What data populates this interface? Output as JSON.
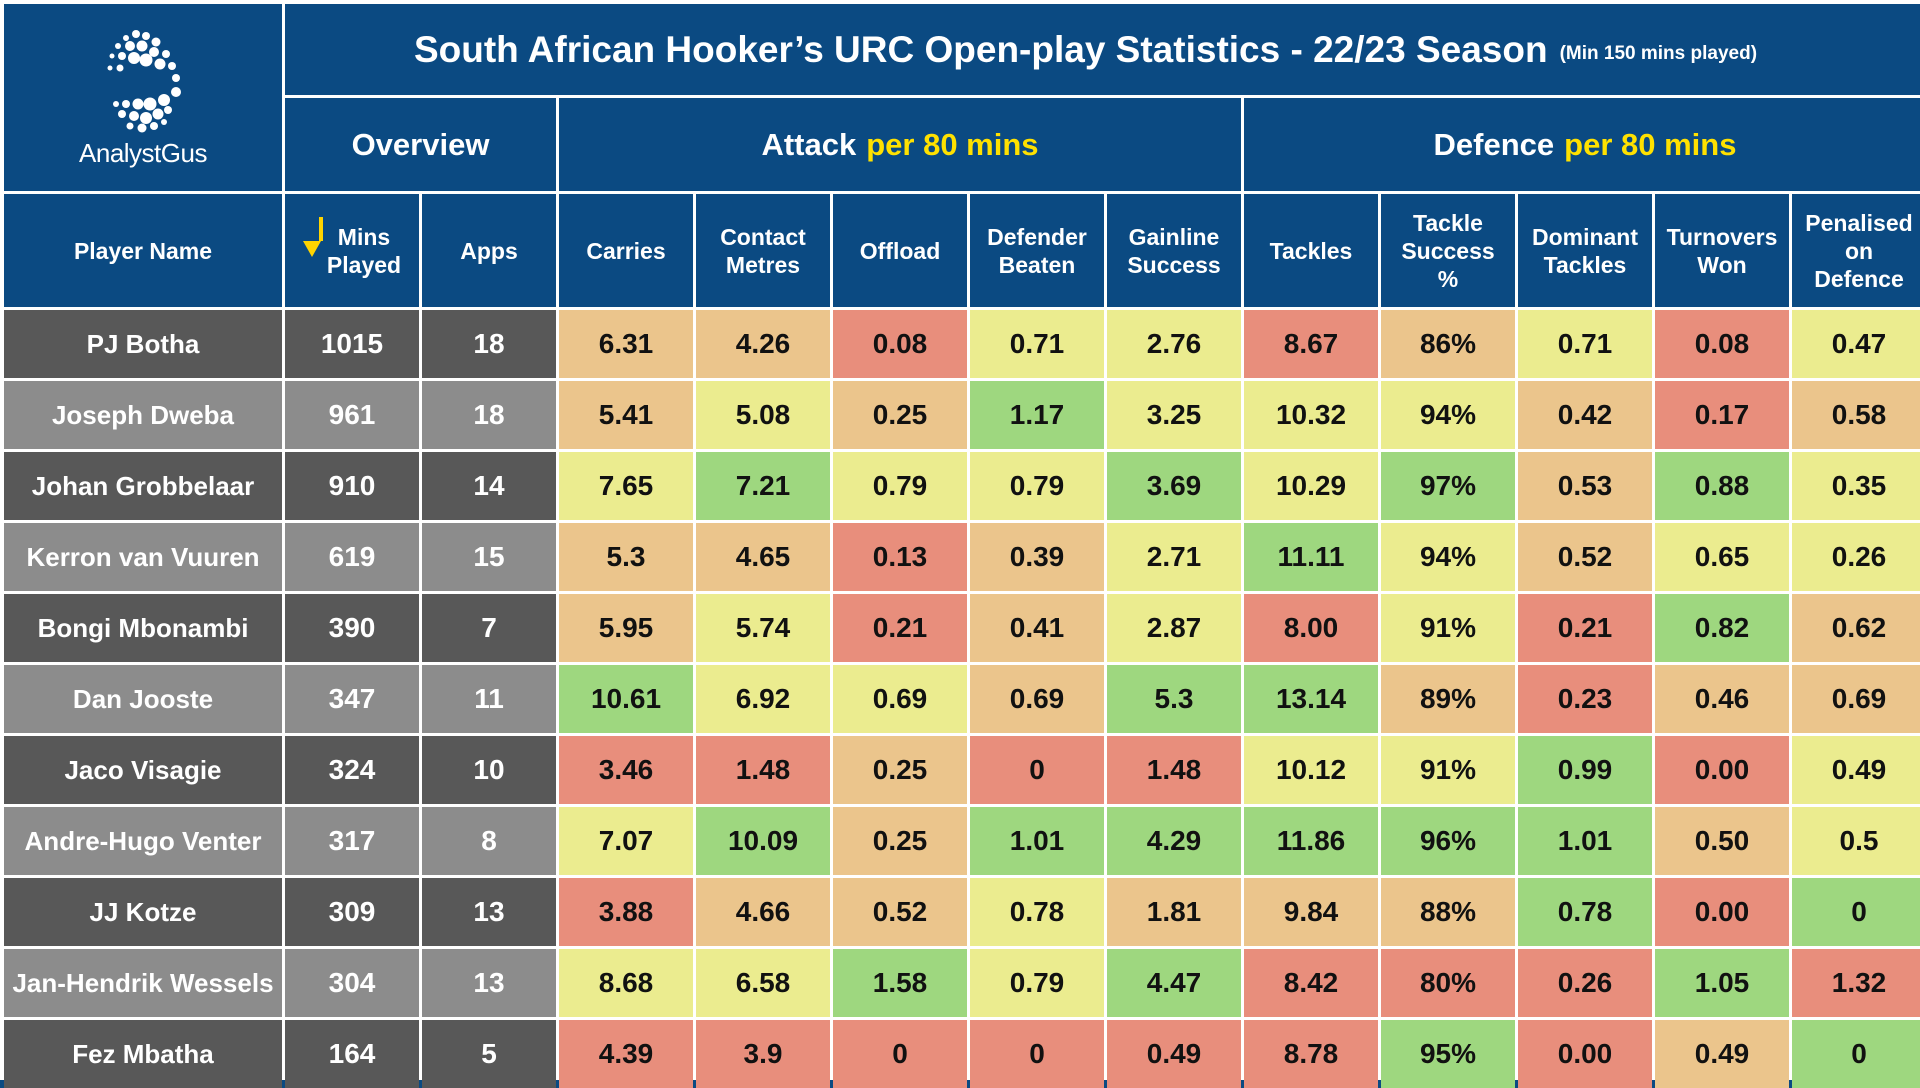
{
  "header": {
    "title": "South African Hooker’s URC Open-play Statistics - 22/23 Season",
    "subtitle": "(Min 150 mins played)",
    "logo_text": "AnalystGus"
  },
  "groups": {
    "overview": "Overview",
    "attack": "Attack",
    "attack_highlight": "per 80 mins",
    "defence": "Defence",
    "defence_highlight": "per 80 mins"
  },
  "colors": {
    "header_blue": "#0b4a82",
    "highlight_yellow": "#ffe100",
    "red": "#e88e7c",
    "orange": "#ebc58c",
    "yellow": "#ebec8f",
    "green": "#9ed77f",
    "row_dark": "#585858",
    "row_light": "#8c8c8c"
  },
  "chart_data": {
    "type": "table",
    "sort": {
      "column": "Mins Played",
      "order": "descending",
      "icon": "down-arrow-icon"
    },
    "columns": [
      "Player Name",
      "Mins\nPlayed",
      "Apps",
      "Carries",
      "Contact\nMetres",
      "Offload",
      "Defender\nBeaten",
      "Gainline\nSuccess",
      "Tackles",
      "Tackle\nSuccess\n%",
      "Dominant\nTackles",
      "Turnovers\nWon",
      "Penalised\non\nDefence"
    ],
    "rows": [
      {
        "name": "PJ Botha",
        "mins": "1015",
        "apps": "18",
        "stats": [
          "6.31",
          "4.26",
          "0.08",
          "0.71",
          "2.76",
          "8.67",
          "86%",
          "0.71",
          "0.08",
          "0.47"
        ],
        "colors": [
          "orange",
          "orange",
          "red",
          "yellow",
          "yellow",
          "red",
          "orange",
          "yellow",
          "red",
          "yellow"
        ]
      },
      {
        "name": "Joseph Dweba",
        "mins": "961",
        "apps": "18",
        "stats": [
          "5.41",
          "5.08",
          "0.25",
          "1.17",
          "3.25",
          "10.32",
          "94%",
          "0.42",
          "0.17",
          "0.58"
        ],
        "colors": [
          "orange",
          "yellow",
          "orange",
          "green",
          "yellow",
          "yellow",
          "yellow",
          "orange",
          "red",
          "orange"
        ]
      },
      {
        "name": "Johan Grobbelaar",
        "mins": "910",
        "apps": "14",
        "stats": [
          "7.65",
          "7.21",
          "0.79",
          "0.79",
          "3.69",
          "10.29",
          "97%",
          "0.53",
          "0.88",
          "0.35"
        ],
        "colors": [
          "yellow",
          "green",
          "yellow",
          "yellow",
          "green",
          "yellow",
          "green",
          "orange",
          "green",
          "yellow"
        ]
      },
      {
        "name": "Kerron van Vuuren",
        "mins": "619",
        "apps": "15",
        "stats": [
          "5.3",
          "4.65",
          "0.13",
          "0.39",
          "2.71",
          "11.11",
          "94%",
          "0.52",
          "0.65",
          "0.26"
        ],
        "colors": [
          "orange",
          "orange",
          "red",
          "orange",
          "yellow",
          "green",
          "yellow",
          "orange",
          "yellow",
          "yellow"
        ]
      },
      {
        "name": "Bongi Mbonambi",
        "mins": "390",
        "apps": "7",
        "stats": [
          "5.95",
          "5.74",
          "0.21",
          "0.41",
          "2.87",
          "8.00",
          "91%",
          "0.21",
          "0.82",
          "0.62"
        ],
        "colors": [
          "orange",
          "yellow",
          "red",
          "orange",
          "yellow",
          "red",
          "yellow",
          "red",
          "green",
          "orange"
        ]
      },
      {
        "name": "Dan Jooste",
        "mins": "347",
        "apps": "11",
        "stats": [
          "10.61",
          "6.92",
          "0.69",
          "0.69",
          "5.3",
          "13.14",
          "89%",
          "0.23",
          "0.46",
          "0.69"
        ],
        "colors": [
          "green",
          "yellow",
          "yellow",
          "orange",
          "green",
          "green",
          "orange",
          "red",
          "orange",
          "orange"
        ]
      },
      {
        "name": "Jaco Visagie",
        "mins": "324",
        "apps": "10",
        "stats": [
          "3.46",
          "1.48",
          "0.25",
          "0",
          "1.48",
          "10.12",
          "91%",
          "0.99",
          "0.00",
          "0.49"
        ],
        "colors": [
          "red",
          "red",
          "orange",
          "red",
          "red",
          "yellow",
          "yellow",
          "green",
          "red",
          "yellow"
        ]
      },
      {
        "name": "Andre-Hugo Venter",
        "mins": "317",
        "apps": "8",
        "stats": [
          "7.07",
          "10.09",
          "0.25",
          "1.01",
          "4.29",
          "11.86",
          "96%",
          "1.01",
          "0.50",
          "0.5"
        ],
        "colors": [
          "yellow",
          "green",
          "orange",
          "green",
          "green",
          "green",
          "green",
          "green",
          "orange",
          "yellow"
        ]
      },
      {
        "name": "JJ Kotze",
        "mins": "309",
        "apps": "13",
        "stats": [
          "3.88",
          "4.66",
          "0.52",
          "0.78",
          "1.81",
          "9.84",
          "88%",
          "0.78",
          "0.00",
          "0"
        ],
        "colors": [
          "red",
          "orange",
          "orange",
          "yellow",
          "orange",
          "orange",
          "orange",
          "green",
          "red",
          "green"
        ]
      },
      {
        "name": "Jan-Hendrik Wessels",
        "mins": "304",
        "apps": "13",
        "stats": [
          "8.68",
          "6.58",
          "1.58",
          "0.79",
          "4.47",
          "8.42",
          "80%",
          "0.26",
          "1.05",
          "1.32"
        ],
        "colors": [
          "yellow",
          "yellow",
          "green",
          "yellow",
          "green",
          "red",
          "red",
          "red",
          "green",
          "red"
        ]
      },
      {
        "name": "Fez Mbatha",
        "mins": "164",
        "apps": "5",
        "stats": [
          "4.39",
          "3.9",
          "0",
          "0",
          "0.49",
          "8.78",
          "95%",
          "0.00",
          "0.49",
          "0"
        ],
        "colors": [
          "red",
          "red",
          "red",
          "red",
          "red",
          "red",
          "green",
          "red",
          "orange",
          "green"
        ]
      }
    ]
  }
}
